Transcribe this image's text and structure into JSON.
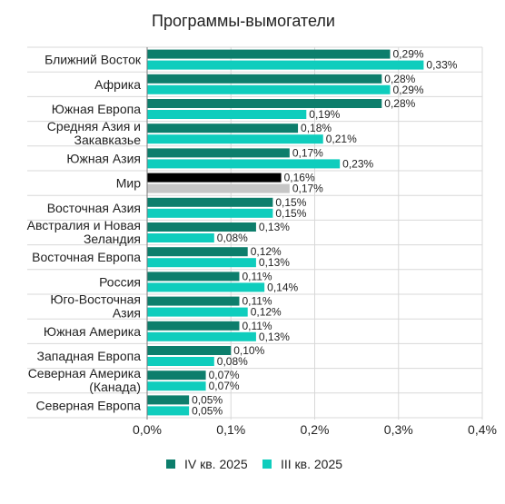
{
  "chart_data": {
    "type": "bar",
    "orientation": "horizontal",
    "title": "Программы-вымогатели",
    "categories": [
      "Ближний Восток",
      "Африка",
      "Южная Европа",
      "Средняя Азия и Закавказье",
      "Южная Азия",
      "Мир",
      "Восточная Азия",
      "Австралия и Новая Зеландия",
      "Восточная Европа",
      "Россия",
      "Юго-Восточная Азия",
      "Южная Америка",
      "Западная Европа",
      "Северная Америка (Канада)",
      "Северная Европа"
    ],
    "series": [
      {
        "name": "IV кв. 2025",
        "values": [
          0.29,
          0.28,
          0.28,
          0.18,
          0.17,
          0.16,
          0.15,
          0.13,
          0.12,
          0.11,
          0.11,
          0.11,
          0.1,
          0.07,
          0.05
        ],
        "labels": [
          "0,29%",
          "0,28%",
          "0,28%",
          "0,18%",
          "0,17%",
          "0,16%",
          "0,15%",
          "0,13%",
          "0,12%",
          "0,11%",
          "0,11%",
          "0,11%",
          "0,10%",
          "0,07%",
          "0,05%"
        ]
      },
      {
        "name": "III кв. 2025",
        "values": [
          0.33,
          0.29,
          0.19,
          0.21,
          0.23,
          0.17,
          0.15,
          0.08,
          0.13,
          0.14,
          0.12,
          0.13,
          0.08,
          0.07,
          0.05
        ],
        "labels": [
          "0,33%",
          "0,29%",
          "0,19%",
          "0,21%",
          "0,23%",
          "0,17%",
          "0,15%",
          "0,08%",
          "0,13%",
          "0,14%",
          "0,12%",
          "0,13%",
          "0,08%",
          "0,07%",
          "0,05%"
        ]
      }
    ],
    "xlim": [
      0,
      0.4
    ],
    "xticks": [
      0,
      0.1,
      0.2,
      0.3,
      0.4
    ],
    "xtick_labels": [
      "0,0%",
      "0,1%",
      "0,2%",
      "0,3%",
      "0,4%"
    ],
    "highlight_category": "Мир",
    "colors": {
      "series1": "#0d7e6c",
      "series2": "#0fcdbd",
      "highlight1": "#000000",
      "highlight2": "#c6c6c6",
      "grid": "#d8d8d8",
      "axis": "#7a7a7a"
    },
    "legend_position": "bottom",
    "grid": true
  }
}
